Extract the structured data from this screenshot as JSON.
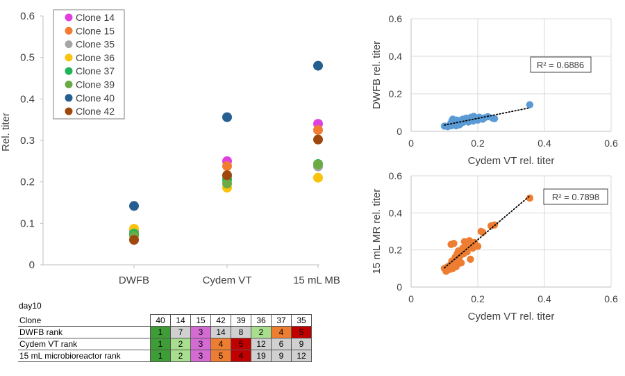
{
  "chart_data": [
    {
      "type": "scatter",
      "categories": [
        "DWFB",
        "Cydem VT",
        "15 mL MB"
      ],
      "ylabel": "Rel. titer",
      "ylim": [
        0,
        0.6
      ],
      "yticks": [
        "0",
        "0.1",
        "0.2",
        "0.3",
        "0.4",
        "0.5",
        "0.6"
      ],
      "grid": false,
      "legend_position": "top-left",
      "series": [
        {
          "name": "Clone 14",
          "color": "#e040e0",
          "values": [
            0.082,
            0.25,
            0.34
          ]
        },
        {
          "name": "Clone 15",
          "color": "#f07d32",
          "values": [
            0.072,
            0.238,
            0.325
          ]
        },
        {
          "name": "Clone 35",
          "color": "#a5a5a5",
          "values": [
            0.078,
            0.212,
            0.237
          ]
        },
        {
          "name": "Clone 36",
          "color": "#f9c20c",
          "values": [
            0.087,
            0.186,
            0.21
          ]
        },
        {
          "name": "Clone 37",
          "color": "#1fb35a",
          "values": [
            0.075,
            0.205,
            0.243
          ]
        },
        {
          "name": "Clone 39",
          "color": "#6aab46",
          "values": [
            0.07,
            0.196,
            0.242
          ]
        },
        {
          "name": "Clone 40",
          "color": "#255e91",
          "values": [
            0.142,
            0.356,
            0.48
          ]
        },
        {
          "name": "Clone 42",
          "color": "#9e480e",
          "values": [
            0.06,
            0.216,
            0.302
          ]
        }
      ]
    },
    {
      "type": "scatter",
      "xlabel": "Cydem VT rel. titer",
      "ylabel": "DWFB rel. titer",
      "xlim": [
        0,
        0.6
      ],
      "ylim": [
        0,
        0.6
      ],
      "xticks": [
        "0",
        "0.2",
        "0.4",
        "0.6"
      ],
      "yticks": [
        "0",
        "0.2",
        "0.4",
        "0.6"
      ],
      "grid": true,
      "trendline": "linear",
      "annotation": "R² = 0.6886",
      "color": "#5b9bd5",
      "points": [
        [
          0.1,
          0.028
        ],
        [
          0.11,
          0.025
        ],
        [
          0.118,
          0.04
        ],
        [
          0.12,
          0.03
        ],
        [
          0.122,
          0.055
        ],
        [
          0.125,
          0.065
        ],
        [
          0.128,
          0.035
        ],
        [
          0.13,
          0.05
        ],
        [
          0.133,
          0.045
        ],
        [
          0.135,
          0.03
        ],
        [
          0.137,
          0.06
        ],
        [
          0.14,
          0.04
        ],
        [
          0.142,
          0.055
        ],
        [
          0.145,
          0.035
        ],
        [
          0.148,
          0.05
        ],
        [
          0.15,
          0.06
        ],
        [
          0.152,
          0.045
        ],
        [
          0.155,
          0.065
        ],
        [
          0.158,
          0.05
        ],
        [
          0.16,
          0.06
        ],
        [
          0.163,
          0.055
        ],
        [
          0.165,
          0.07
        ],
        [
          0.168,
          0.06
        ],
        [
          0.17,
          0.065
        ],
        [
          0.172,
          0.05
        ],
        [
          0.175,
          0.07
        ],
        [
          0.178,
          0.06
        ],
        [
          0.18,
          0.075
        ],
        [
          0.183,
          0.065
        ],
        [
          0.186,
          0.055
        ],
        [
          0.188,
          0.08
        ],
        [
          0.192,
          0.065
        ],
        [
          0.196,
          0.072
        ],
        [
          0.2,
          0.06
        ],
        [
          0.205,
          0.075
        ],
        [
          0.21,
          0.07
        ],
        [
          0.215,
          0.065
        ],
        [
          0.22,
          0.072
        ],
        [
          0.23,
          0.078
        ],
        [
          0.245,
          0.07
        ],
        [
          0.25,
          0.068
        ],
        [
          0.356,
          0.142
        ]
      ]
    },
    {
      "type": "scatter",
      "xlabel": "Cydem VT rel. titer",
      "ylabel": "15 mL MR rel. titer",
      "xlim": [
        0,
        0.6
      ],
      "ylim": [
        0,
        0.6
      ],
      "xticks": [
        "0",
        "0.2",
        "0.4",
        "0.6"
      ],
      "yticks": [
        "0",
        "0.2",
        "0.4",
        "0.6"
      ],
      "grid": true,
      "trendline": "linear",
      "annotation": "R² = 0.7898",
      "color": "#ed7d31",
      "points": [
        [
          0.1,
          0.1
        ],
        [
          0.105,
          0.085
        ],
        [
          0.11,
          0.11
        ],
        [
          0.115,
          0.095
        ],
        [
          0.118,
          0.12
        ],
        [
          0.12,
          0.23
        ],
        [
          0.122,
          0.14
        ],
        [
          0.125,
          0.1
        ],
        [
          0.128,
          0.235
        ],
        [
          0.13,
          0.13
        ],
        [
          0.132,
          0.16
        ],
        [
          0.135,
          0.11
        ],
        [
          0.138,
          0.18
        ],
        [
          0.14,
          0.125
        ],
        [
          0.142,
          0.195
        ],
        [
          0.145,
          0.14
        ],
        [
          0.148,
          0.17
        ],
        [
          0.15,
          0.13
        ],
        [
          0.152,
          0.2
        ],
        [
          0.155,
          0.21
        ],
        [
          0.158,
          0.18
        ],
        [
          0.16,
          0.245
        ],
        [
          0.163,
          0.2
        ],
        [
          0.165,
          0.23
        ],
        [
          0.168,
          0.19
        ],
        [
          0.17,
          0.24
        ],
        [
          0.172,
          0.21
        ],
        [
          0.175,
          0.25
        ],
        [
          0.178,
          0.15
        ],
        [
          0.18,
          0.23
        ],
        [
          0.185,
          0.21
        ],
        [
          0.19,
          0.24
        ],
        [
          0.2,
          0.22
        ],
        [
          0.21,
          0.3
        ],
        [
          0.215,
          0.295
        ],
        [
          0.24,
          0.33
        ],
        [
          0.25,
          0.335
        ],
        [
          0.356,
          0.48
        ]
      ]
    }
  ],
  "rank_table": {
    "caption": "day10",
    "header_label": "Clone",
    "clones": [
      "40",
      "14",
      "15",
      "42",
      "39",
      "36",
      "37",
      "35"
    ],
    "rows": [
      {
        "label": "DWFB rank",
        "values": [
          "1",
          "7",
          "3",
          "14",
          "8",
          "2",
          "4",
          "5"
        ]
      },
      {
        "label": "Cydem VT rank",
        "values": [
          "1",
          "2",
          "3",
          "4",
          "5",
          "12",
          "6",
          "9"
        ]
      },
      {
        "label": "15 mL microbioreactor rank",
        "values": [
          "1",
          "2",
          "3",
          "5",
          "4",
          "19",
          "9",
          "12"
        ]
      }
    ],
    "clone_colors": {
      "40": "#3e9d36",
      "14": "#a8df8f",
      "15": "#d36bd3",
      "42": "#ed7d31",
      "39": "#c00000",
      "36": "#a8df8f",
      "37": "#ed7d31",
      "35": "#c00000"
    },
    "neutral_color": "#d0d0d0",
    "highlight_ranks": 5
  }
}
